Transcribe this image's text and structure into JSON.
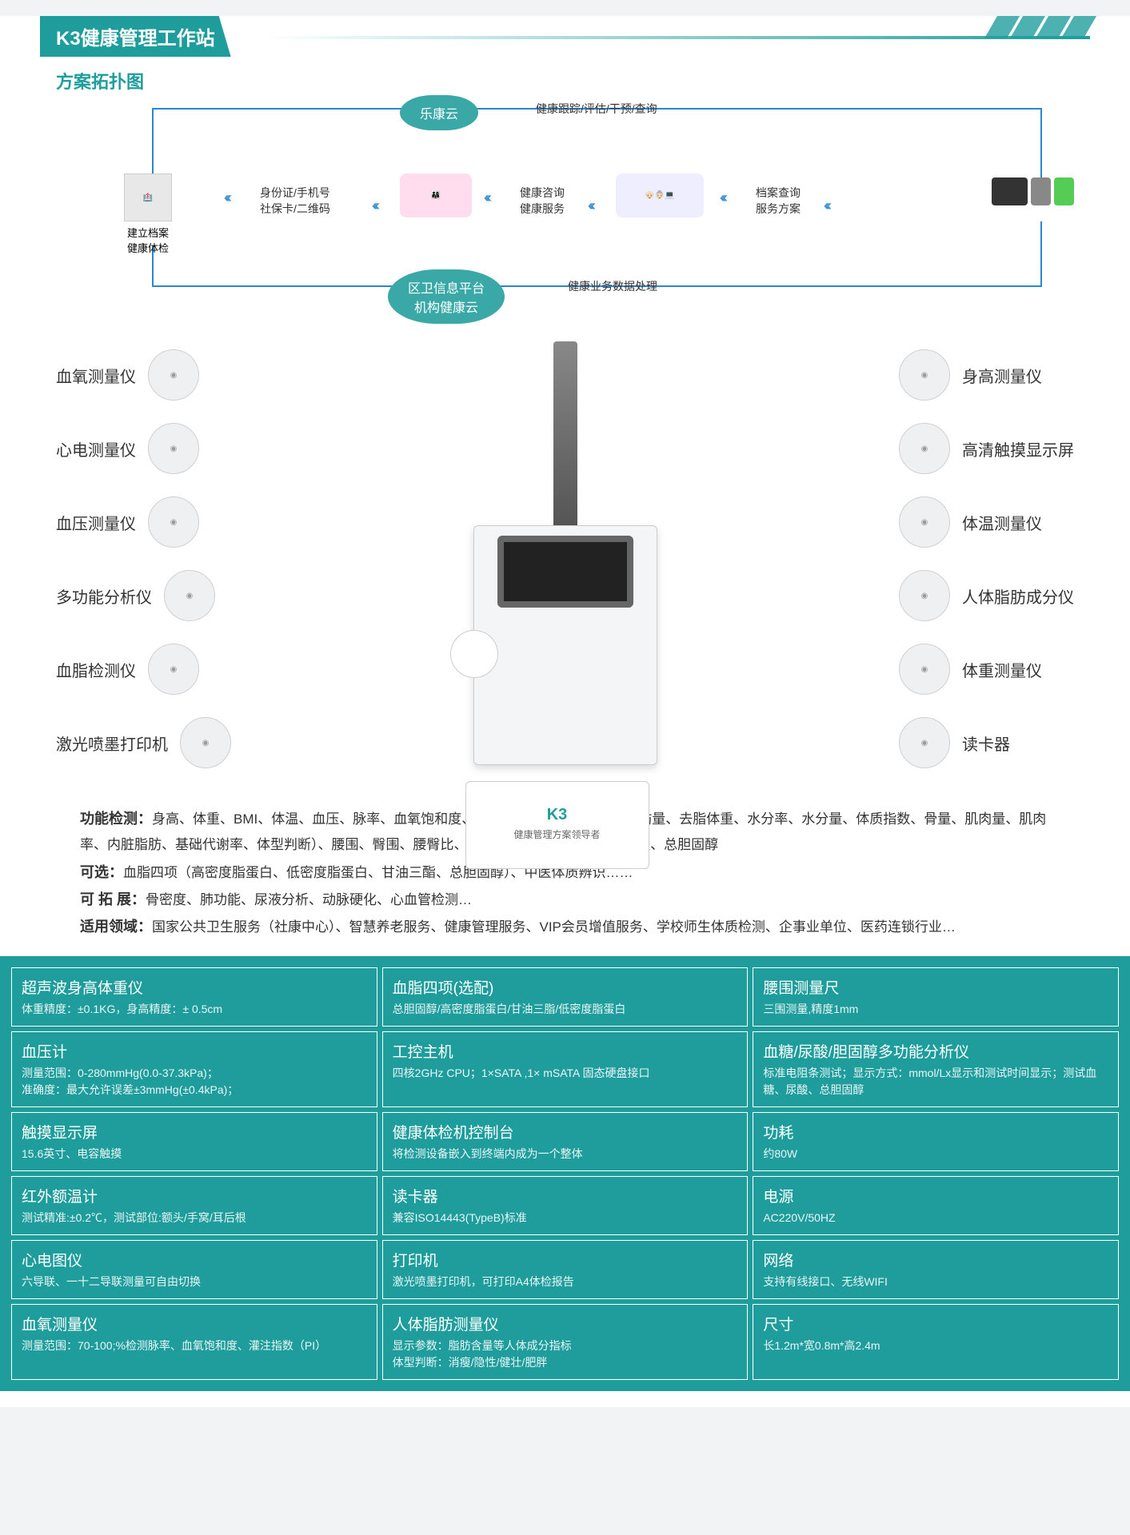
{
  "colors": {
    "teal": "#1f9d9c",
    "blue": "#2b88d0",
    "bg": "#ffffff",
    "text": "#333333"
  },
  "header": {
    "title": "K3健康管理工作站"
  },
  "sub_title": "方案拓扑图",
  "topology": {
    "cloud_top": "乐康云",
    "cloud_bottom_l1": "区卫信息平台",
    "cloud_bottom_l2": "机构健康云",
    "top_text": "健康跟踪/评估/干预/查询",
    "bottom_text": "健康业务数据处理",
    "node_left_l1": "建立档案",
    "node_left_l2": "健康体检",
    "link1_l1": "身份证/手机号",
    "link1_l2": "社保卡/二维码",
    "link2_l1": "健康咨询",
    "link2_l2": "健康服务",
    "link3_l1": "档案查询",
    "link3_l2": "服务方案"
  },
  "left_devices": [
    "血氧测量仪",
    "心电测量仪",
    "血压测量仪",
    "多功能分析仪",
    "血脂检测仪",
    "激光喷墨打印机"
  ],
  "right_devices": [
    "身高测量仪",
    "高清触摸显示屏",
    "体温测量仪",
    "人体脂肪成分仪",
    "体重测量仪",
    "读卡器"
  ],
  "kiosk": {
    "logo": "K3",
    "sub": "健康管理方案领导者"
  },
  "features": {
    "func_label": "功能检测：",
    "func_text": "身高、体重、BMI、体温、血压、脉率、血氧饱和度、人体脂肪成分（脂肪率、脂肪量、去脂体重、水分率、水分量、体质指数、骨量、肌肉量、肌肉率、内脏脂肪、基础代谢率、体型判断）、腰围、臀围、腰臀比、心电（6导/12导）、血糖、尿酸、总胆固醇",
    "opt_label": "可选：",
    "opt_text": "血脂四项（高密度脂蛋白、低密度脂蛋白、甘油三酯、总胆固醇）、中医体质辨识……",
    "ext_label": "可 拓 展：",
    "ext_text": "骨密度、肺功能、尿液分析、动脉硬化、心血管检测…",
    "domain_label": "适用领域：",
    "domain_text": "国家公共卫生服务（社康中心）、智慧养老服务、健康管理服务、VIP会员增值服务、学校师生体质检测、企事业单位、医药连锁行业…"
  },
  "specs": [
    [
      {
        "t": "超声波身高体重仪",
        "d": "体重精度：±0.1KG，身高精度：± 0.5cm"
      },
      {
        "t": "血脂四项(选配)",
        "d": "总胆固醇/高密度脂蛋白/甘油三脂/低密度脂蛋白"
      },
      {
        "t": "腰围测量尺",
        "d": "三围测量,精度1mm"
      }
    ],
    [
      {
        "t": "血压计",
        "d": "测量范围：0-280mmHg(0.0-37.3kPa)；\n准确度：最大允许误差±3mmHg(±0.4kPa)；"
      },
      {
        "t": "工控主机",
        "d": "四核2GHz CPU；1×SATA ,1× mSATA 固态硬盘接口"
      },
      {
        "t": "血糖/尿酸/胆固醇多功能分析仪",
        "d": "标准电阻条测试；显示方式：mmol/Lx显示和测试时间显示；测试血糖、尿酸、总胆固醇"
      }
    ],
    [
      {
        "t": "触摸显示屏",
        "d": "15.6英寸、电容触摸"
      },
      {
        "t": "健康体检机控制台",
        "d": "将检测设备嵌入到终端内成为一个整体"
      },
      {
        "t": "功耗",
        "d": "约80W"
      }
    ],
    [
      {
        "t": "红外额温计",
        "d": "测试精准:±0.2℃，测试部位:额头/手窝/耳后根"
      },
      {
        "t": "读卡器",
        "d": "兼容ISO14443(TypeB)标准"
      },
      {
        "t": "电源",
        "d": "AC220V/50HZ"
      }
    ],
    [
      {
        "t": "心电图仪",
        "d": "六导联、一十二导联测量可自由切换"
      },
      {
        "t": "打印机",
        "d": "激光喷墨打印机，可打印A4体检报告"
      },
      {
        "t": "网络",
        "d": "支持有线接口、无线WIFI"
      }
    ],
    [
      {
        "t": "血氧测量仪",
        "d": "测量范围：70-100;%检测脉率、血氧饱和度、灌注指数（PI）"
      },
      {
        "t": "人体脂肪测量仪",
        "d": "显示参数：脂肪含量等人体成分指标\n体型判断：消瘦/隐性/健壮/肥胖"
      },
      {
        "t": "尺寸",
        "d": "长1.2m*宽0.8m*高2.4m"
      }
    ]
  ]
}
